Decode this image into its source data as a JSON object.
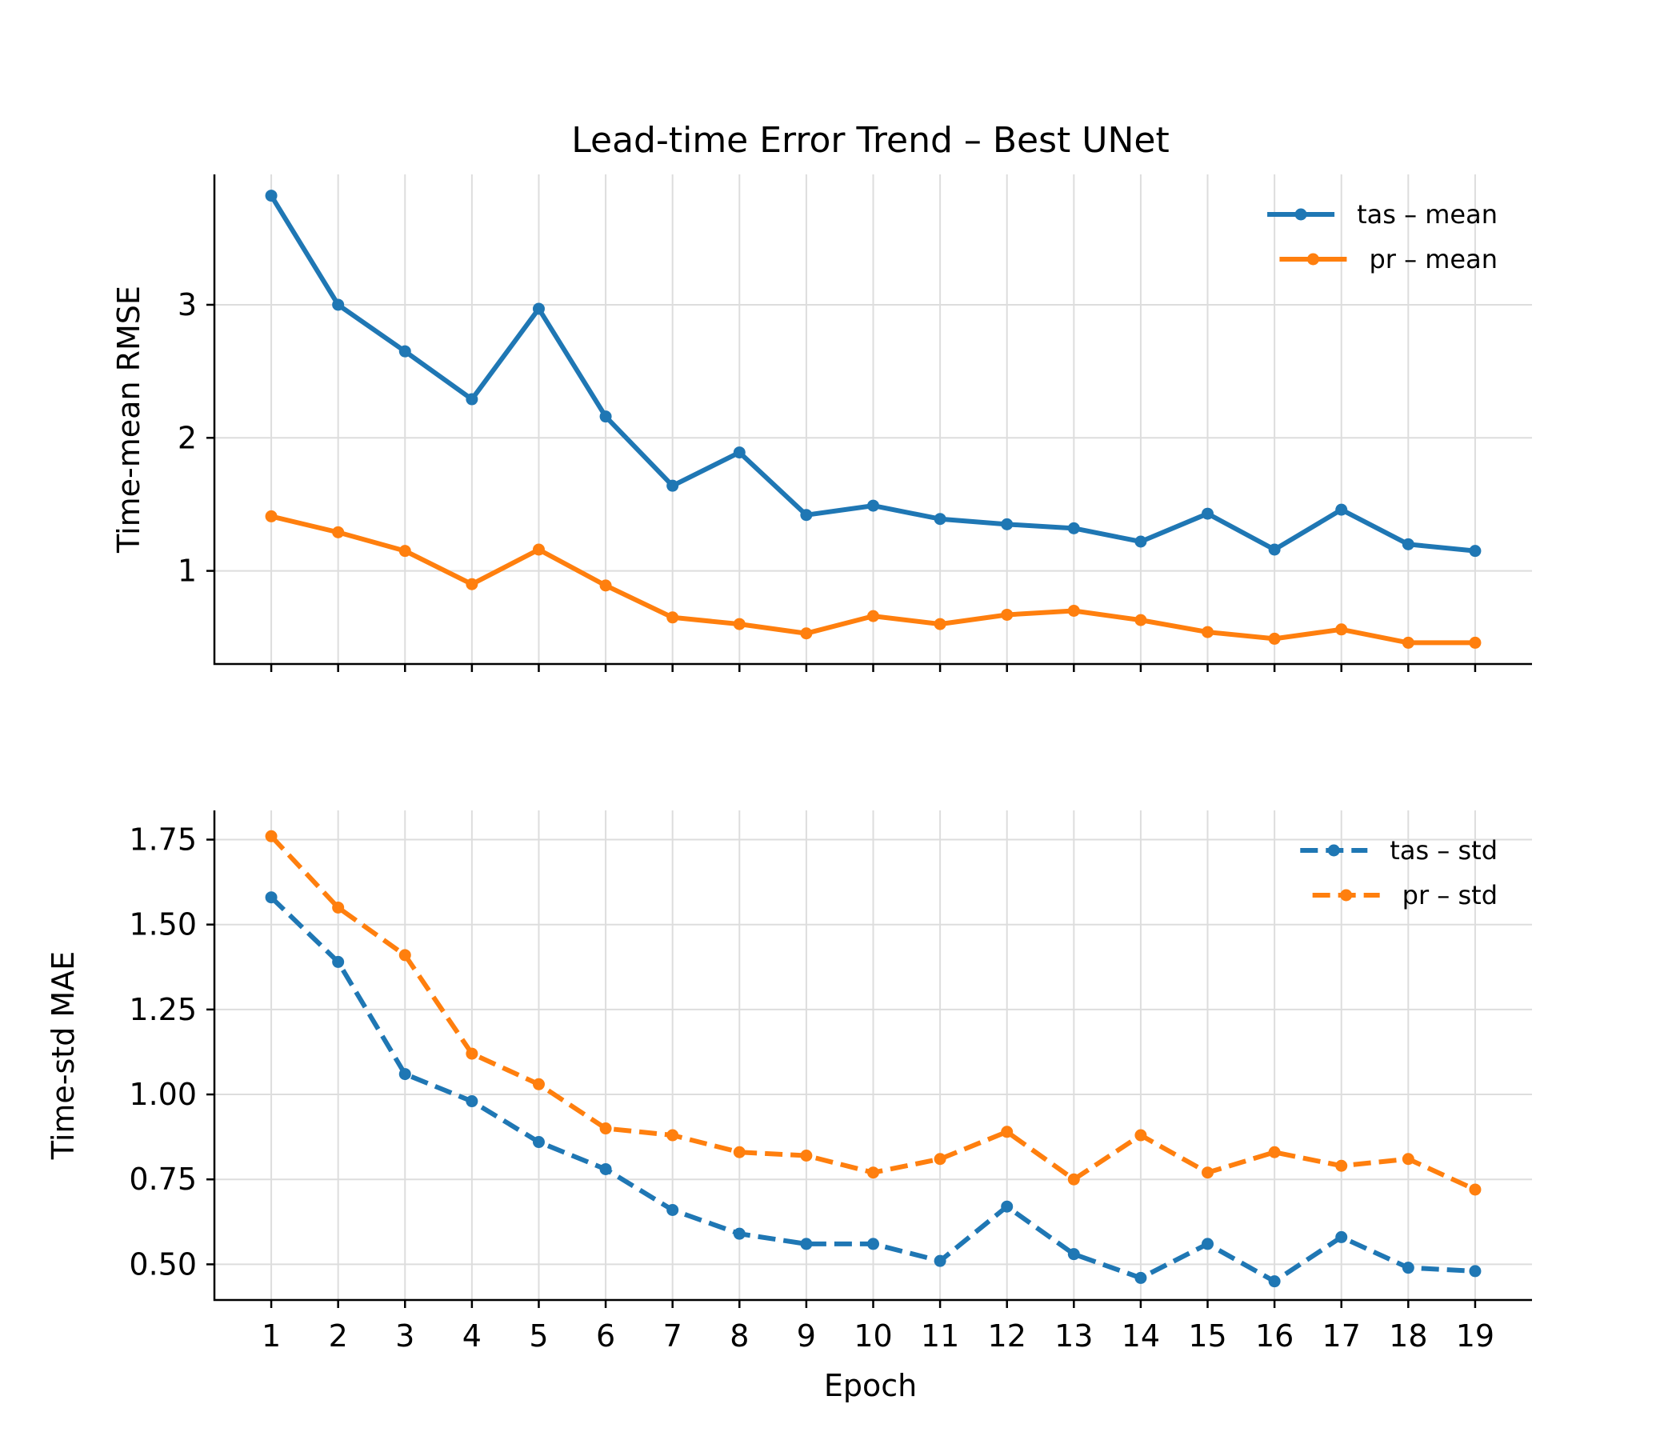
{
  "chart_data": {
    "title": "Lead-time Error Trend – Best UNet",
    "xlabel": "Epoch",
    "x": [
      1,
      2,
      3,
      4,
      5,
      6,
      7,
      8,
      9,
      10,
      11,
      12,
      13,
      14,
      15,
      16,
      17,
      18,
      19
    ],
    "panels": [
      {
        "type": "line",
        "ylabel": "Time-mean RMSE",
        "ylim": [
          0.3,
          3.98
        ],
        "yticks": [
          1,
          2,
          3
        ],
        "ytick_labels": [
          "1",
          "2",
          "3"
        ],
        "grid": true,
        "legend_position": "top-right",
        "series": [
          {
            "name": "tas – mean",
            "color": "#1f77b4",
            "style": "solid",
            "values": [
              3.82,
              3.0,
              2.65,
              2.29,
              2.97,
              2.16,
              1.64,
              1.89,
              1.42,
              1.49,
              1.39,
              1.35,
              1.32,
              1.22,
              1.43,
              1.16,
              1.46,
              1.2,
              1.15
            ]
          },
          {
            "name": "pr – mean",
            "color": "#ff7f0e",
            "style": "solid",
            "values": [
              1.41,
              1.29,
              1.15,
              0.9,
              1.16,
              0.89,
              0.65,
              0.6,
              0.53,
              0.66,
              0.6,
              0.67,
              0.7,
              0.63,
              0.54,
              0.49,
              0.56,
              0.46,
              0.46
            ]
          }
        ]
      },
      {
        "type": "line",
        "ylabel": "Time-std MAE",
        "ylim": [
          0.395,
          1.836
        ],
        "yticks": [
          0.5,
          0.75,
          1.0,
          1.25,
          1.5,
          1.75
        ],
        "ytick_labels": [
          "0.50",
          "0.75",
          "1.00",
          "1.25",
          "1.50",
          "1.75"
        ],
        "grid": true,
        "legend_position": "top-right",
        "series": [
          {
            "name": "tas – std",
            "color": "#1f77b4",
            "style": "dashed",
            "values": [
              1.58,
              1.39,
              1.06,
              0.98,
              0.86,
              0.78,
              0.66,
              0.59,
              0.56,
              0.56,
              0.51,
              0.67,
              0.53,
              0.46,
              0.56,
              0.45,
              0.58,
              0.49,
              0.48
            ]
          },
          {
            "name": "pr – std",
            "color": "#ff7f0e",
            "style": "dashed",
            "values": [
              1.76,
              1.55,
              1.41,
              1.12,
              1.03,
              0.9,
              0.88,
              0.83,
              0.82,
              0.77,
              0.81,
              0.89,
              0.75,
              0.88,
              0.77,
              0.83,
              0.79,
              0.81,
              0.72
            ]
          }
        ]
      }
    ]
  }
}
